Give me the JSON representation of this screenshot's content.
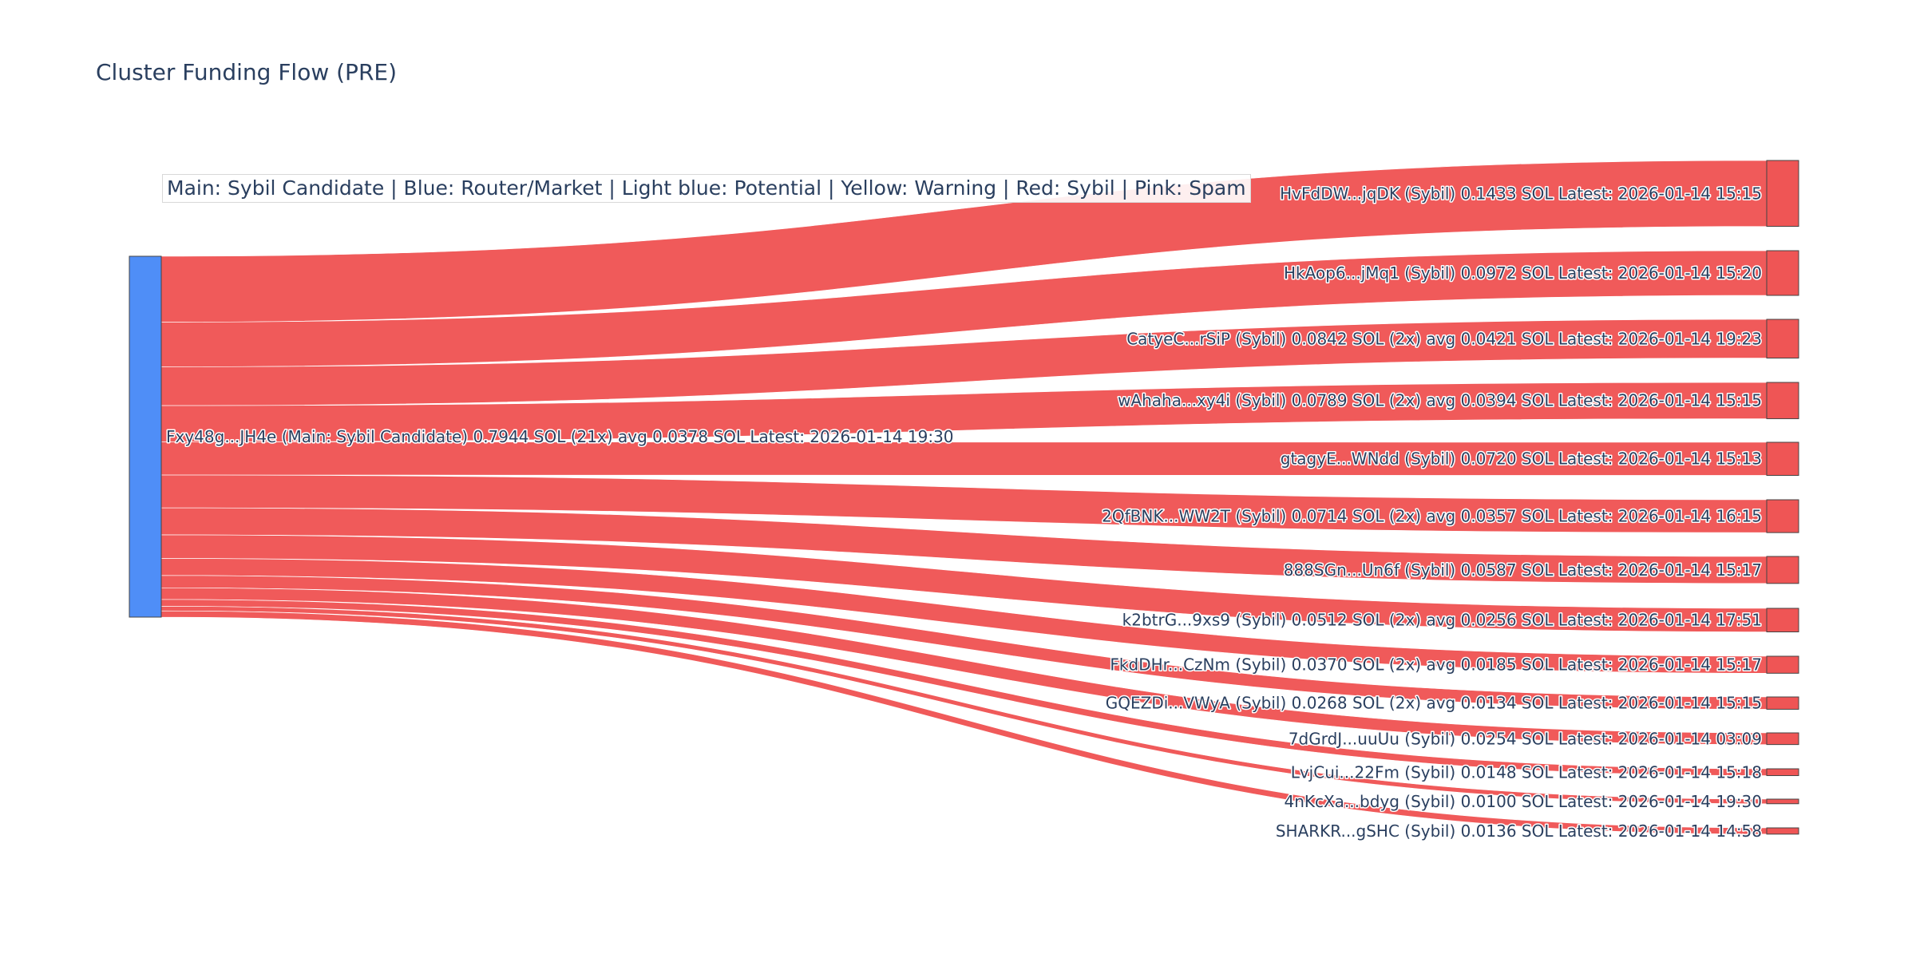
{
  "title": "Cluster Funding Flow (PRE)",
  "legend": "Main: Sybil Candidate  |  Blue: Router/Market | Light blue: Potential | Yellow: Warning | Red: Sybil | Pink: Spam",
  "colors": {
    "source": "#4f8ef7",
    "target": "#ef5555",
    "link": "#ef5555",
    "node_border": "#444444"
  },
  "chart_data": {
    "type": "sankey",
    "source": {
      "name": "Fxy48g...JH4e",
      "label": "Fxy48g...JH4e (Main: Sybil Candidate) 0.7944 SOL (21x) avg 0.0378 SOL Latest: 2026-01-14 19:30",
      "value": 0.7944
    },
    "targets": [
      {
        "name": "HvFdDW...jqDK",
        "label": "HvFdDW...jqDK (Sybil) 0.1433 SOL Latest: 2026-01-14 15:15",
        "value": 0.1433
      },
      {
        "name": "HkAop6...jMq1",
        "label": "HkAop6...jMq1 (Sybil) 0.0972 SOL Latest: 2026-01-14 15:20",
        "value": 0.0972
      },
      {
        "name": "CatyeC...rSiP",
        "label": "CatyeC...rSiP (Sybil) 0.0842 SOL (2x) avg 0.0421 SOL Latest: 2026-01-14 19:23",
        "value": 0.0842
      },
      {
        "name": "wAhaha...xy4i",
        "label": "wAhaha...xy4i (Sybil) 0.0789 SOL (2x) avg 0.0394 SOL Latest: 2026-01-14 15:15",
        "value": 0.0789
      },
      {
        "name": "gtagyE...WNdd",
        "label": "gtagyE...WNdd (Sybil) 0.0720 SOL Latest: 2026-01-14 15:13",
        "value": 0.072
      },
      {
        "name": "2QfBNK...WW2T",
        "label": "2QfBNK...WW2T (Sybil) 0.0714 SOL (2x) avg 0.0357 SOL Latest: 2026-01-14 16:15",
        "value": 0.0714
      },
      {
        "name": "888SGn...Un6f",
        "label": "888SGn...Un6f (Sybil) 0.0587 SOL Latest: 2026-01-14 15:17",
        "value": 0.0587
      },
      {
        "name": "k2btrG...9xs9",
        "label": "k2btrG...9xs9 (Sybil) 0.0512 SOL (2x) avg 0.0256 SOL Latest: 2026-01-14 17:51",
        "value": 0.0512
      },
      {
        "name": "FkdDHr...CzNm",
        "label": "FkdDHr...CzNm (Sybil) 0.0370 SOL (2x) avg 0.0185 SOL Latest: 2026-01-14 15:17",
        "value": 0.037
      },
      {
        "name": "GQEZDi...VWyA",
        "label": "GQEZDi...VWyA (Sybil) 0.0268 SOL (2x) avg 0.0134 SOL Latest: 2026-01-14 15:15",
        "value": 0.0268
      },
      {
        "name": "7dGrdJ...uuUu",
        "label": "7dGrdJ...uuUu (Sybil) 0.0254 SOL Latest: 2026-01-14 03:09",
        "value": 0.0254
      },
      {
        "name": "LvjCui...22Fm",
        "label": "LvjCui...22Fm (Sybil) 0.0148 SOL Latest: 2026-01-14 15:18",
        "value": 0.0148
      },
      {
        "name": "4nKcXa...bdyg",
        "label": "4nKcXa...bdyg (Sybil) 0.0100 SOL Latest: 2026-01-14 19:30",
        "value": 0.01
      },
      {
        "name": "SHARKR...gSHC",
        "label": "SHARKR...gSHC (Sybil) 0.0136 SOL Latest: 2026-01-14 14:58",
        "value": 0.0136
      }
    ]
  }
}
